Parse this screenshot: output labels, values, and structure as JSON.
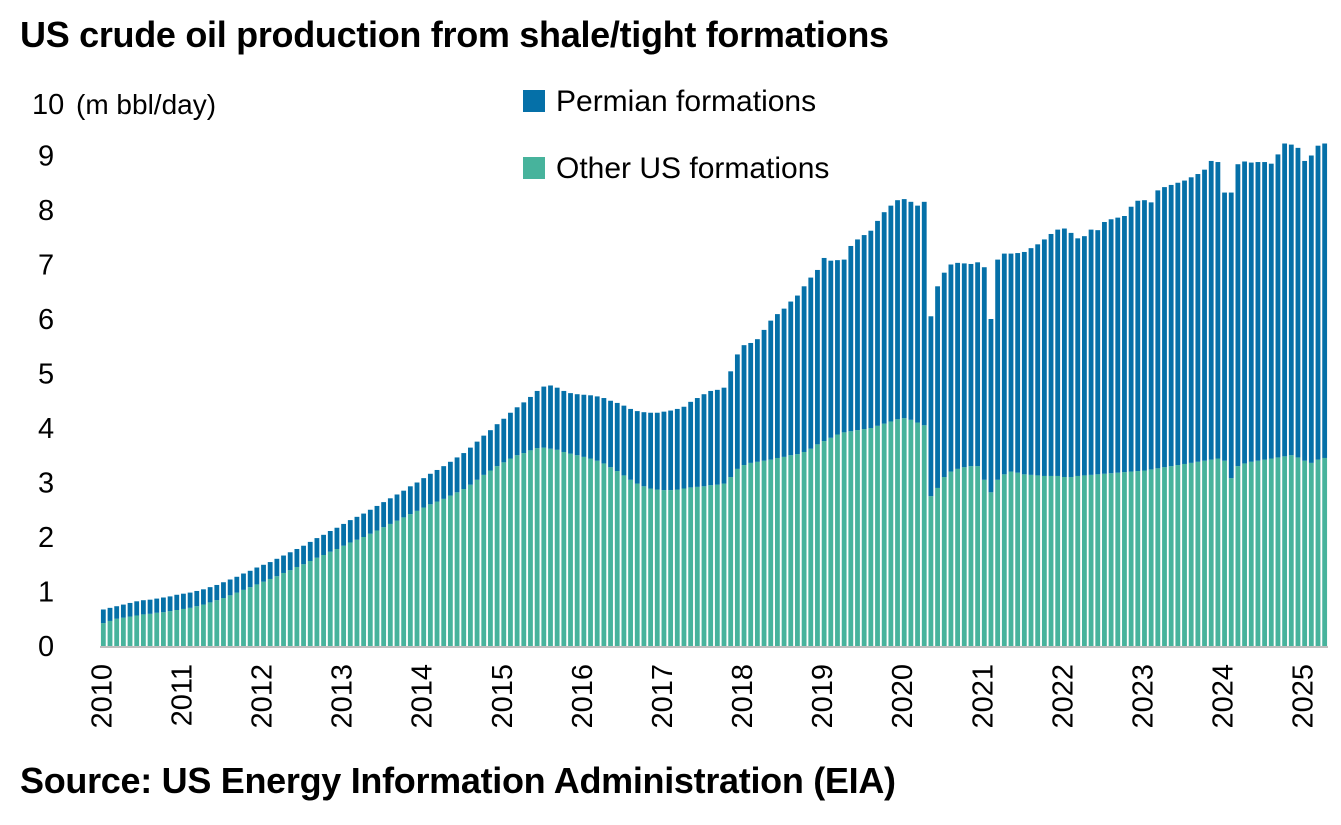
{
  "title": "US crude oil production from shale/tight formations",
  "source": "Source: US Energy Information Administration (EIA)",
  "colors": {
    "permian": "#0570a8",
    "other": "#47b39c",
    "axis": "#bfbfbf"
  },
  "chart_data": {
    "type": "bar",
    "stacked": true,
    "frequency": "monthly",
    "start": "2010-01",
    "end": "2025-04",
    "y_unit_label": "(m bbl/day)",
    "ylim": [
      0,
      10
    ],
    "y_ticks": [
      0,
      1,
      2,
      3,
      4,
      5,
      6,
      7,
      8,
      9,
      10
    ],
    "x_tick_labels": [
      "2010",
      "2011",
      "2012",
      "2013",
      "2014",
      "2015",
      "2016",
      "2017",
      "2018",
      "2019",
      "2020",
      "2021",
      "2022",
      "2023",
      "2024",
      "2025"
    ],
    "legend": {
      "position": "top-center"
    },
    "grid": false,
    "series": [
      {
        "name": "Other US formations",
        "color": "#47b39c",
        "values": [
          0.42,
          0.46,
          0.5,
          0.52,
          0.54,
          0.56,
          0.58,
          0.59,
          0.61,
          0.62,
          0.64,
          0.66,
          0.68,
          0.7,
          0.73,
          0.76,
          0.8,
          0.84,
          0.88,
          0.93,
          0.98,
          1.03,
          1.08,
          1.13,
          1.18,
          1.23,
          1.28,
          1.34,
          1.39,
          1.45,
          1.5,
          1.56,
          1.62,
          1.67,
          1.73,
          1.78,
          1.84,
          1.9,
          1.95,
          2.0,
          2.06,
          2.12,
          2.18,
          2.24,
          2.3,
          2.36,
          2.42,
          2.48,
          2.54,
          2.6,
          2.65,
          2.7,
          2.76,
          2.82,
          2.88,
          2.96,
          3.05,
          3.14,
          3.22,
          3.3,
          3.37,
          3.44,
          3.5,
          3.54,
          3.59,
          3.63,
          3.64,
          3.62,
          3.6,
          3.56,
          3.53,
          3.5,
          3.47,
          3.44,
          3.4,
          3.35,
          3.28,
          3.21,
          3.13,
          3.05,
          2.98,
          2.93,
          2.89,
          2.87,
          2.86,
          2.86,
          2.87,
          2.89,
          2.91,
          2.92,
          2.93,
          2.95,
          2.96,
          2.98,
          3.1,
          3.25,
          3.32,
          3.36,
          3.38,
          3.4,
          3.42,
          3.45,
          3.47,
          3.5,
          3.52,
          3.56,
          3.62,
          3.7,
          3.76,
          3.82,
          3.88,
          3.92,
          3.94,
          3.96,
          3.98,
          4.0,
          4.04,
          4.08,
          4.12,
          4.16,
          4.18,
          4.15,
          4.1,
          4.05,
          2.75,
          2.9,
          3.1,
          3.2,
          3.25,
          3.28,
          3.3,
          3.3,
          3.05,
          2.82,
          3.05,
          3.15,
          3.2,
          3.18,
          3.15,
          3.14,
          3.13,
          3.12,
          3.12,
          3.12,
          3.1,
          3.1,
          3.12,
          3.13,
          3.14,
          3.15,
          3.16,
          3.17,
          3.18,
          3.19,
          3.2,
          3.21,
          3.22,
          3.24,
          3.26,
          3.28,
          3.3,
          3.32,
          3.34,
          3.36,
          3.38,
          3.4,
          3.42,
          3.44,
          3.4,
          3.08,
          3.3,
          3.35,
          3.38,
          3.4,
          3.42,
          3.44,
          3.46,
          3.48,
          3.5,
          3.46,
          3.4,
          3.36,
          3.42,
          3.45
        ]
      },
      {
        "name": "Permian formations",
        "color": "#0570a8",
        "values": [
          0.25,
          0.24,
          0.23,
          0.24,
          0.25,
          0.26,
          0.26,
          0.26,
          0.26,
          0.27,
          0.27,
          0.28,
          0.28,
          0.28,
          0.28,
          0.28,
          0.28,
          0.28,
          0.29,
          0.29,
          0.29,
          0.3,
          0.3,
          0.31,
          0.31,
          0.31,
          0.32,
          0.32,
          0.33,
          0.33,
          0.34,
          0.35,
          0.36,
          0.37,
          0.38,
          0.39,
          0.4,
          0.41,
          0.42,
          0.43,
          0.44,
          0.45,
          0.46,
          0.47,
          0.48,
          0.49,
          0.51,
          0.52,
          0.54,
          0.56,
          0.58,
          0.6,
          0.62,
          0.64,
          0.66,
          0.68,
          0.7,
          0.72,
          0.74,
          0.77,
          0.8,
          0.84,
          0.88,
          0.93,
          0.98,
          1.05,
          1.12,
          1.16,
          1.14,
          1.12,
          1.11,
          1.12,
          1.14,
          1.16,
          1.18,
          1.2,
          1.22,
          1.25,
          1.28,
          1.3,
          1.33,
          1.36,
          1.39,
          1.41,
          1.44,
          1.46,
          1.48,
          1.5,
          1.57,
          1.63,
          1.69,
          1.73,
          1.74,
          1.76,
          1.94,
          2.1,
          2.2,
          2.2,
          2.25,
          2.4,
          2.55,
          2.64,
          2.72,
          2.82,
          2.91,
          3.04,
          3.14,
          3.2,
          3.36,
          3.25,
          3.2,
          3.17,
          3.4,
          3.5,
          3.56,
          3.62,
          3.76,
          3.88,
          3.96,
          4.02,
          4.02,
          4.0,
          3.98,
          4.1,
          3.3,
          3.7,
          3.75,
          3.8,
          3.78,
          3.74,
          3.71,
          3.74,
          3.9,
          3.18,
          4.04,
          4.05,
          4.0,
          4.03,
          4.08,
          4.16,
          4.24,
          4.34,
          4.44,
          4.52,
          4.56,
          4.48,
          4.36,
          4.39,
          4.5,
          4.48,
          4.62,
          4.66,
          4.68,
          4.7,
          4.86,
          4.96,
          4.96,
          4.9,
          5.1,
          5.14,
          5.16,
          5.18,
          5.2,
          5.24,
          5.28,
          5.34,
          5.48,
          5.44,
          4.92,
          5.24,
          5.54,
          5.54,
          5.49,
          5.48,
          5.46,
          5.41,
          5.56,
          5.74,
          5.7,
          5.68,
          5.5,
          5.64,
          5.76,
          5.77
        ]
      }
    ]
  }
}
